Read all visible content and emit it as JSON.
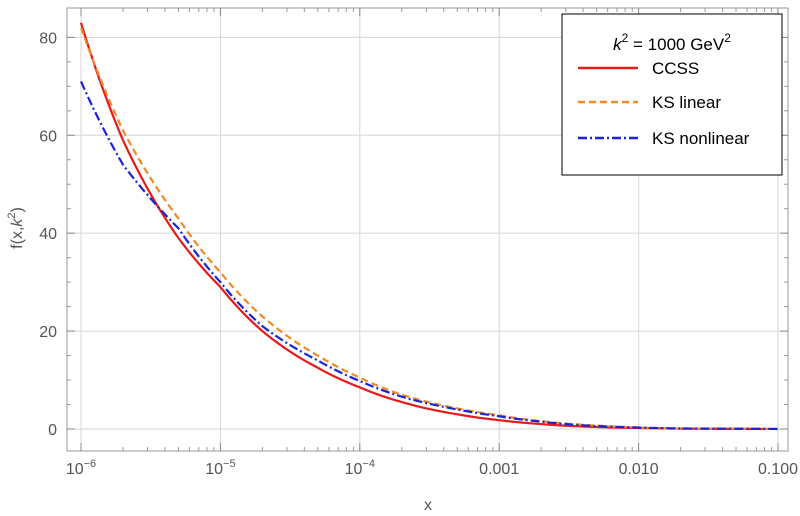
{
  "chart_data": {
    "type": "line",
    "xlabel": "x",
    "ylabel": {
      "base": "f(x,",
      "k": "k",
      "exp": "2",
      "close": ")"
    },
    "x_scale": "log",
    "xlim": [
      1e-06,
      0.1
    ],
    "ylim": [
      -4.5,
      86
    ],
    "x_ticks": [
      {
        "value": 1e-06,
        "base": "10",
        "exp": "−6"
      },
      {
        "value": 1e-05,
        "base": "10",
        "exp": "−5"
      },
      {
        "value": 0.0001,
        "base": "10",
        "exp": "−4"
      },
      {
        "value": 0.001,
        "label": "0.001"
      },
      {
        "value": 0.01,
        "label": "0.010"
      },
      {
        "value": 0.1,
        "label": "0.100"
      }
    ],
    "y_ticks": [
      0,
      20,
      40,
      60,
      80
    ],
    "grid": true,
    "legend": {
      "placement": "top-right",
      "title": {
        "k": "k",
        "exp1": "2",
        "mid": " = 1000 GeV",
        "exp2": "2"
      }
    },
    "x": [
      1e-06,
      2e-06,
      5e-06,
      1e-05,
      2e-05,
      5e-05,
      0.0001,
      0.0002,
      0.0005,
      0.001,
      0.002,
      0.005,
      0.01,
      0.02,
      0.05,
      0.1
    ],
    "series": [
      {
        "name": "CCSS",
        "color": "#e8191b",
        "dash": "solid",
        "values": [
          83,
          59,
          39,
          29,
          20,
          12.5,
          8.5,
          5.5,
          3.0,
          1.8,
          1.0,
          0.4,
          0.2,
          0.08,
          0.03,
          0.0
        ]
      },
      {
        "name": "KS linear",
        "color": "#f08a24",
        "dash": "dashed",
        "values": [
          82,
          61,
          43,
          32,
          23,
          15,
          10.5,
          7.0,
          4.2,
          2.8,
          1.6,
          0.7,
          0.3,
          0.1,
          0.05,
          0.0
        ]
      },
      {
        "name": "KS nonlinear",
        "color": "#1a24d6",
        "dash": "dashdot",
        "values": [
          71,
          54,
          41,
          30,
          21,
          14,
          9.8,
          6.6,
          4.0,
          2.6,
          1.5,
          0.6,
          0.3,
          0.1,
          0.05,
          0.0
        ]
      }
    ]
  }
}
